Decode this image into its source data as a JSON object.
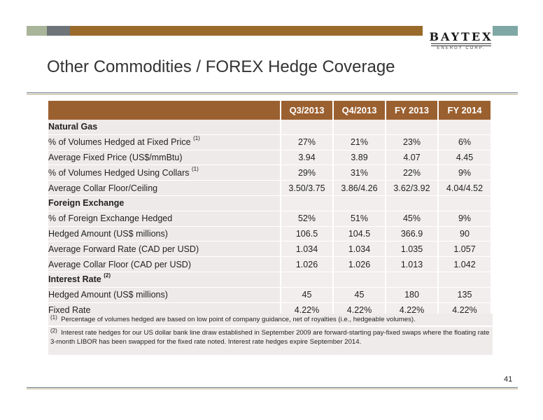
{
  "logo": {
    "name": "BAYTEX",
    "sub": "ENERGY CORP."
  },
  "title": "Other Commodities / FOREX Hedge Coverage",
  "table": {
    "headers": [
      "Q3/2013",
      "Q4/2013",
      "FY 2013",
      "FY 2014"
    ],
    "rows": [
      {
        "label": "Natural Gas",
        "section": true,
        "values": [
          "",
          "",
          "",
          ""
        ]
      },
      {
        "label": "% of Volumes Hedged at Fixed Price",
        "sup": "(1)",
        "values": [
          "27%",
          "21%",
          "23%",
          "6%"
        ]
      },
      {
        "label": "Average Fixed Price (US$/mmBtu)",
        "values": [
          "3.94",
          "3.89",
          "4.07",
          "4.45"
        ]
      },
      {
        "label": "% of Volumes Hedged Using Collars",
        "sup": "(1)",
        "values": [
          "29%",
          "31%",
          "22%",
          "9%"
        ]
      },
      {
        "label": "Average Collar Floor/Ceiling",
        "values": [
          "3.50/3.75",
          "3.86/4.26",
          "3.62/3.92",
          "4.04/4.52"
        ]
      },
      {
        "label": "Foreign Exchange",
        "section": true,
        "values": [
          "",
          "",
          "",
          ""
        ]
      },
      {
        "label": "% of Foreign Exchange Hedged",
        "values": [
          "52%",
          "51%",
          "45%",
          "9%"
        ]
      },
      {
        "label": "Hedged Amount (US$ millions)",
        "values": [
          "106.5",
          "104.5",
          "366.9",
          "90"
        ]
      },
      {
        "label": "Average Forward Rate (CAD per USD)",
        "values": [
          "1.034",
          "1.034",
          "1.035",
          "1.057"
        ]
      },
      {
        "label": "Average Collar Floor (CAD per USD)",
        "values": [
          "1.026",
          "1.026",
          "1.013",
          "1.042"
        ]
      },
      {
        "label": "Interest Rate",
        "sup": "(2)",
        "section": true,
        "values": [
          "",
          "",
          "",
          ""
        ]
      },
      {
        "label": "Hedged Amount (US$ millions)",
        "values": [
          "45",
          "45",
          "180",
          "135"
        ]
      },
      {
        "label": "Fixed Rate",
        "values": [
          "4.22%",
          "4.22%",
          "4.22%",
          "4.22%"
        ]
      }
    ]
  },
  "notes": [
    {
      "mark": "(1)",
      "text": "Percentage of volumes hedged are based on low point of company guidance, net of royalties (i.e., hedgeable volumes)."
    },
    {
      "mark": "(2)",
      "text": "Interest rate hedges for our US dollar bank line draw established in September 2009 are forward-starting pay-fixed swaps where the floating rate 3-month LIBOR has been swapped for the fixed rate noted. Interest rate hedges expire September 2014."
    }
  ],
  "page_number": "41"
}
